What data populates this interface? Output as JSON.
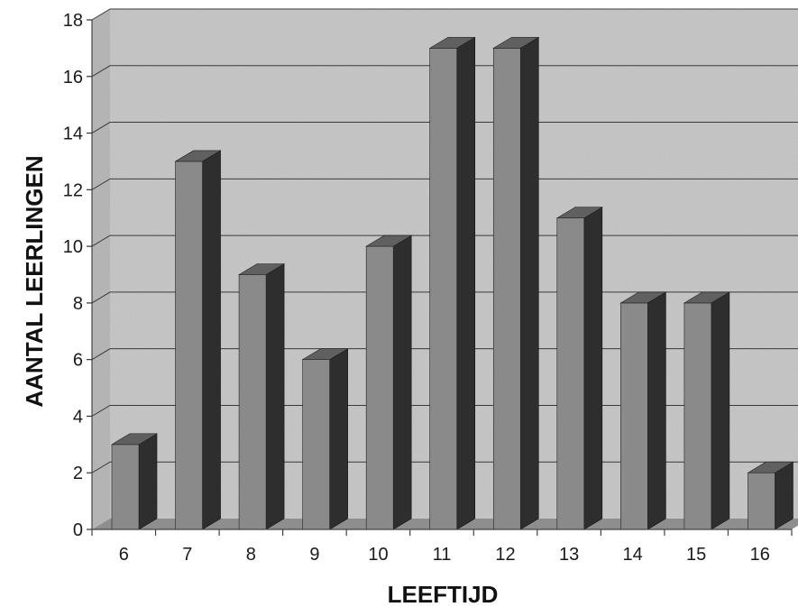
{
  "chart_data": {
    "type": "bar",
    "title": "",
    "xlabel": "LEEFTIJD",
    "ylabel": "AANTAL LEERLINGEN",
    "categories": [
      "6",
      "7",
      "8",
      "9",
      "10",
      "11",
      "12",
      "13",
      "14",
      "15",
      "16"
    ],
    "series": [
      {
        "values": [
          3,
          13,
          9,
          6,
          10,
          17,
          17,
          11,
          8,
          8,
          2
        ]
      }
    ],
    "ylim": [
      0,
      18
    ],
    "yticks": [
      0,
      2,
      4,
      6,
      8,
      10,
      12,
      14,
      16,
      18
    ],
    "grid": true,
    "legend": "none",
    "style": "3d",
    "colors": {
      "wall": "#c4c4c4",
      "floor": "#8e8e8e",
      "gridline": "#3a3a3a",
      "bar_front": "#8a8a8a",
      "bar_side": "#2e2e2e",
      "bar_top": "#606060"
    }
  }
}
